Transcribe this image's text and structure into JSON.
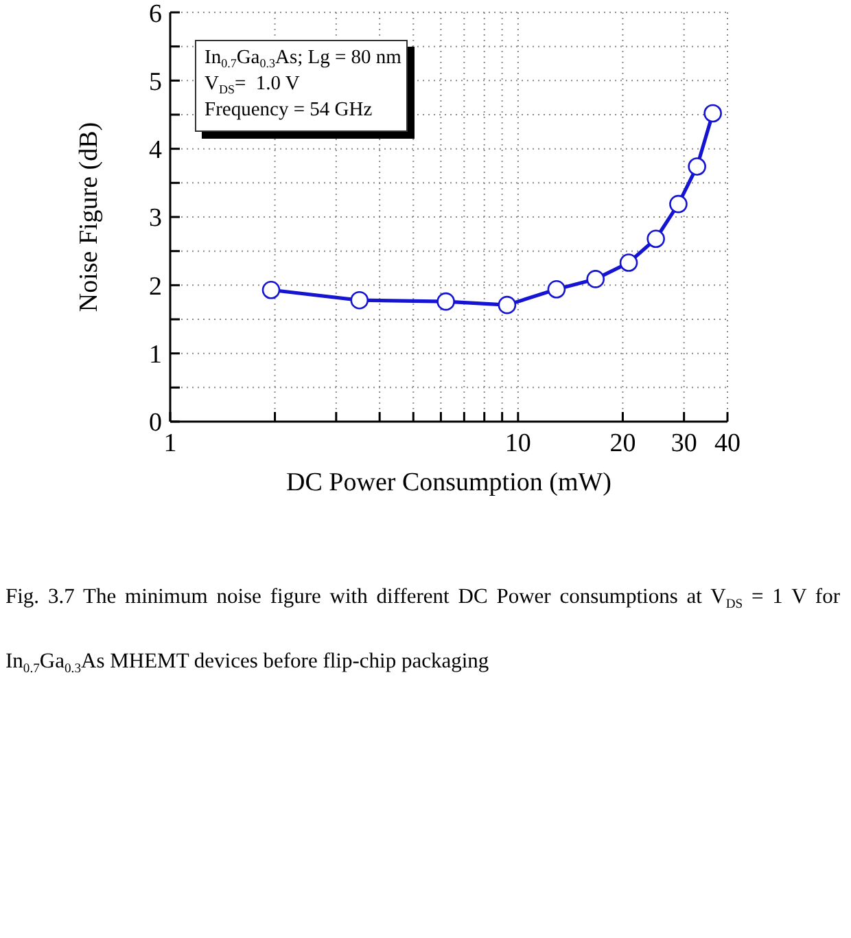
{
  "chart_data": {
    "type": "line",
    "xlabel": "DC Power Consumption (mW)",
    "ylabel": "Noise Figure (dB)",
    "x": [
      1.95,
      3.5,
      6.2,
      9.3,
      12.9,
      16.7,
      20.8,
      24.9,
      28.9,
      32.7,
      36.3
    ],
    "series": [
      {
        "color": "#1414d2",
        "values": [
          1.93,
          1.78,
          1.76,
          1.71,
          1.94,
          2.09,
          2.33,
          2.68,
          3.19,
          3.74,
          4.52
        ]
      }
    ],
    "log": "x",
    "xlim": [
      1,
      40
    ],
    "xticks": [
      1,
      {
        "value": 2,
        "label": null
      },
      {
        "value": 3,
        "label": null
      },
      {
        "value": 4,
        "label": null
      },
      {
        "value": 5,
        "label": null
      },
      {
        "value": 6,
        "label": null
      },
      {
        "value": 7,
        "label": null
      },
      {
        "value": 8,
        "label": null
      },
      {
        "value": 9,
        "label": null
      },
      10,
      20,
      30,
      40
    ],
    "ylim": [
      0,
      6
    ],
    "yticks": [
      0,
      {
        "value": 0.5,
        "label": null
      },
      1,
      {
        "value": 1.5,
        "label": null
      },
      2,
      {
        "value": 2.5,
        "label": null
      },
      3,
      {
        "value": 3.5,
        "label": null
      },
      4,
      {
        "value": 4.5,
        "label": null
      },
      5,
      {
        "value": 5.5,
        "label": null
      },
      6
    ],
    "grid": true,
    "marker": "circle",
    "line_style": "solid",
    "annotations": [
      "In$_{0.7}$Ga$_{0.3}$As; Lg = 80 nm",
      "V$_{DS}$=  1.0 V",
      "Frequency = 54 GHz",
      "Fig. 3.7 The minimum noise figure with different DC Power consumptions at V$_{DS}$ = 1 V for In$_{0.7}$Ga$_{0.3}$As MHEMT devices before flip-chip packaging"
    ]
  }
}
